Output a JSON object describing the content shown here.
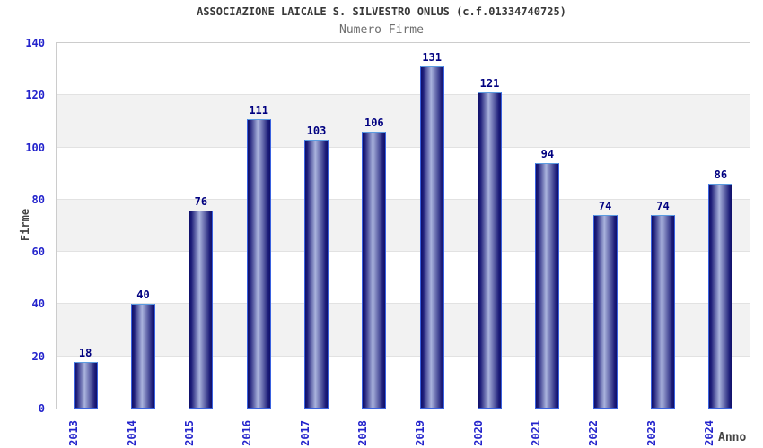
{
  "chart_data": {
    "type": "bar",
    "title": "ASSOCIAZIONE LAICALE S. SILVESTRO ONLUS (c.f.01334740725)",
    "subtitle": "Numero Firme",
    "xlabel": "Anno",
    "ylabel": "Firme",
    "categories": [
      "2013",
      "2014",
      "2015",
      "2016",
      "2017",
      "2018",
      "2019",
      "2020",
      "2021",
      "2022",
      "2023",
      "2024"
    ],
    "values": [
      18,
      40,
      76,
      111,
      103,
      106,
      131,
      121,
      94,
      74,
      74,
      86
    ],
    "ylim": [
      0,
      140
    ],
    "yticks": [
      0,
      20,
      40,
      60,
      80,
      100,
      120,
      140
    ],
    "ytick_step": 20,
    "grid": "horizontal-bands",
    "legend": "none",
    "value_labels": true,
    "colors": {
      "bar_dark": "#10106a",
      "bar_mid": "#1c1c78",
      "bar_light": "#aab3dd",
      "bar_border": "#3a62e0",
      "bar_border_top": "#5b9be0",
      "tick_label": "#2424cc",
      "value_label": "#000080",
      "band_gray": "#f2f2f2",
      "band_white": "#ffffff",
      "gridline": "#e2e2e2",
      "plot_border": "#cccccc",
      "title_color": "#383838",
      "subtitle_color": "#6e6e6e",
      "axis_title_color": "#444444"
    }
  }
}
